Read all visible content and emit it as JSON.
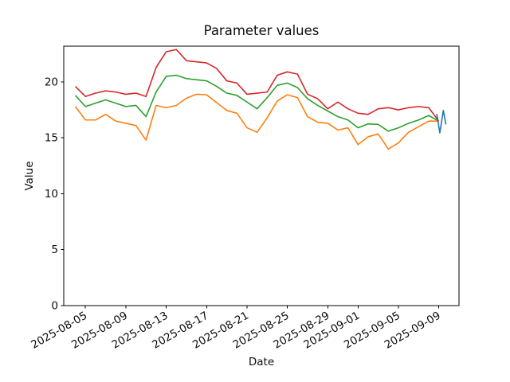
{
  "chart_data": {
    "type": "line",
    "title": "Parameter values",
    "xlabel": "Date",
    "ylabel": "Value",
    "grid": false,
    "legend": "none",
    "ylim": [
      0,
      23.2
    ],
    "y_ticks": [
      0,
      5,
      10,
      15,
      20
    ],
    "x_tick_labels": [
      "2025-08-05",
      "2025-08-09",
      "2025-08-13",
      "2025-08-17",
      "2025-08-21",
      "2025-08-25",
      "2025-08-29",
      "2025-09-01",
      "2025-09-05",
      "2025-09-09"
    ],
    "x_tick_day_index": [
      1,
      5,
      9,
      13,
      17,
      21,
      25,
      28,
      32,
      36
    ],
    "x_unit": "days since 2025-08-04",
    "dates": [
      "2025-08-04",
      "2025-08-05",
      "2025-08-06",
      "2025-08-07",
      "2025-08-08",
      "2025-08-09",
      "2025-08-10",
      "2025-08-11",
      "2025-08-12",
      "2025-08-13",
      "2025-08-14",
      "2025-08-15",
      "2025-08-16",
      "2025-08-17",
      "2025-08-18",
      "2025-08-19",
      "2025-08-20",
      "2025-08-21",
      "2025-08-22",
      "2025-08-23",
      "2025-08-24",
      "2025-08-25",
      "2025-08-26",
      "2025-08-27",
      "2025-08-28",
      "2025-08-29",
      "2025-08-30",
      "2025-08-31",
      "2025-09-01",
      "2025-09-02",
      "2025-09-03",
      "2025-09-04",
      "2025-09-05",
      "2025-09-06",
      "2025-09-07",
      "2025-09-08",
      "2025-09-09"
    ],
    "series": [
      {
        "name": "red",
        "color": "#d62728",
        "values": [
          19.6,
          18.7,
          19.0,
          19.2,
          19.1,
          18.9,
          19.0,
          18.7,
          21.3,
          22.7,
          22.9,
          21.9,
          21.8,
          21.7,
          21.2,
          20.1,
          19.9,
          18.9,
          19.0,
          19.1,
          20.6,
          20.9,
          20.7,
          18.9,
          18.5,
          17.6,
          18.2,
          17.6,
          17.2,
          17.1,
          17.6,
          17.7,
          17.5,
          17.7,
          17.8,
          17.7,
          16.5
        ]
      },
      {
        "name": "green",
        "color": "#2ca02c",
        "values": [
          18.8,
          17.8,
          18.1,
          18.4,
          18.1,
          17.8,
          17.9,
          16.9,
          19.1,
          20.5,
          20.6,
          20.3,
          20.2,
          20.1,
          19.6,
          19.0,
          18.8,
          18.2,
          17.6,
          18.6,
          19.7,
          19.9,
          19.5,
          18.5,
          17.9,
          17.4,
          16.9,
          16.6,
          15.9,
          16.25,
          16.2,
          15.6,
          15.9,
          16.3,
          16.6,
          17.0,
          16.5
        ]
      },
      {
        "name": "orange",
        "color": "#ff7f0e",
        "values": [
          17.8,
          16.6,
          16.6,
          17.1,
          16.5,
          16.3,
          16.1,
          14.8,
          17.9,
          17.7,
          17.9,
          18.55,
          18.9,
          18.85,
          18.15,
          17.45,
          17.2,
          15.9,
          15.5,
          16.8,
          18.3,
          18.85,
          18.6,
          16.9,
          16.4,
          16.3,
          15.7,
          15.9,
          14.4,
          15.1,
          15.35,
          14.0,
          14.55,
          15.5,
          16.0,
          16.5,
          16.5
        ]
      },
      {
        "name": "blue",
        "color": "#1f77b4",
        "x_days": [
          35.8,
          36.1,
          36.45,
          36.7
        ],
        "values": [
          17.15,
          15.45,
          17.45,
          16.2
        ]
      }
    ]
  }
}
